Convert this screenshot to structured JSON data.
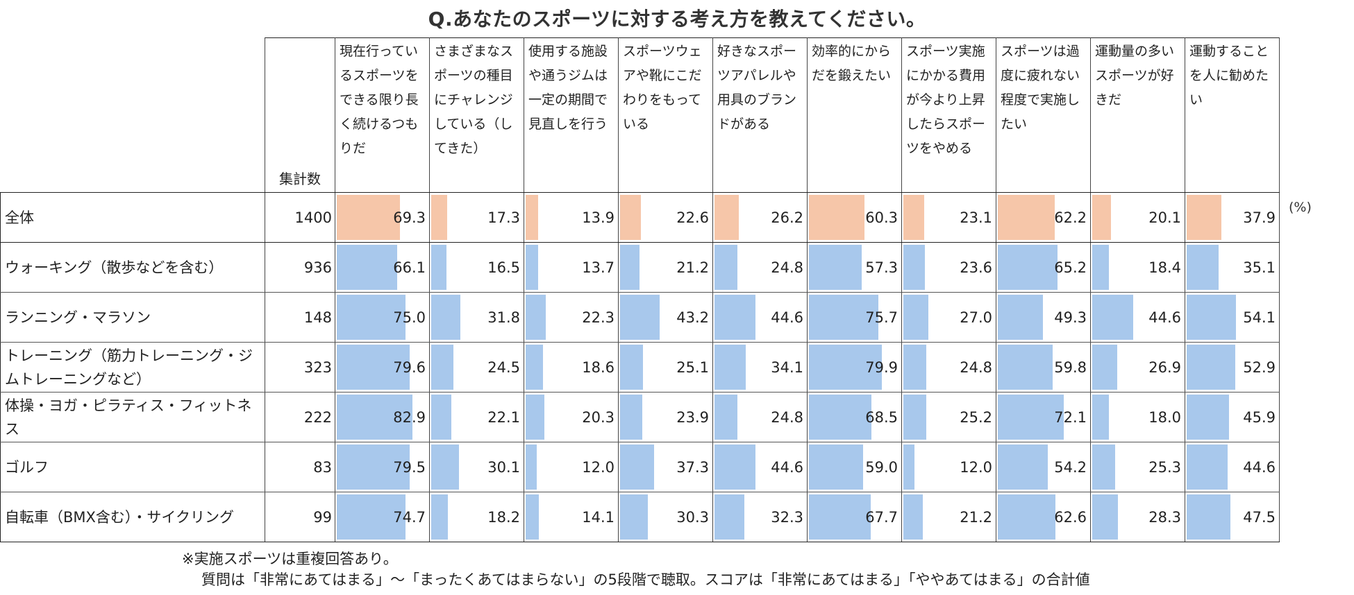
{
  "title": "Q.あなたのスポーツに対する考え方を教えてください。",
  "unit_label": "(%)",
  "count_header": "集計数",
  "notes": [
    "※実施スポーツは重複回答あり。",
    "質問は「非常にあてはまる」〜「まったくあてはまらない」の5段階で聴取。スコアは「非常にあてはまる」「ややあてはまる」の合計値"
  ],
  "colors": {
    "total_bar": "#f6c6a9",
    "group_bar": "#a8c8ec"
  },
  "chart_data": {
    "type": "table",
    "value_max": 100,
    "columns": [
      "現在行っているスポーツをできる限り長く続けるつもりだ",
      "さまざまなスポーツの種目にチャレンジしている（してきた）",
      "使用する施設や通うジムは一定の期間で見直しを行う",
      "スポーツウェアや靴にこだわりをもっている",
      "好きなスポーツアパレルや用具のブランドがある",
      "効率的にからだを鍛えたい",
      "スポーツ実施にかかる費用が今より上昇したらスポーツをやめる",
      "スポーツは過度に疲れない程度で実施したい",
      "運動量の多いスポーツが好きだ",
      "運動することを人に勧めたい"
    ],
    "rows": [
      {
        "label": "全体",
        "count": "1400",
        "values": [
          "69.3",
          "17.3",
          "13.9",
          "22.6",
          "26.2",
          "60.3",
          "23.1",
          "62.2",
          "20.1",
          "37.9"
        ]
      },
      {
        "label": "ウォーキング（散歩などを含む）",
        "count": "936",
        "values": [
          "66.1",
          "16.5",
          "13.7",
          "21.2",
          "24.8",
          "57.3",
          "23.6",
          "65.2",
          "18.4",
          "35.1"
        ]
      },
      {
        "label": "ランニング・マラソン",
        "count": "148",
        "values": [
          "75.0",
          "31.8",
          "22.3",
          "43.2",
          "44.6",
          "75.7",
          "27.0",
          "49.3",
          "44.6",
          "54.1"
        ]
      },
      {
        "label": "トレーニング（筋力トレーニング・ジムトレーニングなど）",
        "count": "323",
        "values": [
          "79.6",
          "24.5",
          "18.6",
          "25.1",
          "34.1",
          "79.9",
          "24.8",
          "59.8",
          "26.9",
          "52.9"
        ]
      },
      {
        "label": "体操・ヨガ・ピラティス・フィットネス",
        "count": "222",
        "values": [
          "82.9",
          "22.1",
          "20.3",
          "23.9",
          "24.8",
          "68.5",
          "25.2",
          "72.1",
          "18.0",
          "45.9"
        ]
      },
      {
        "label": "ゴルフ",
        "count": "83",
        "values": [
          "79.5",
          "30.1",
          "12.0",
          "37.3",
          "44.6",
          "59.0",
          "12.0",
          "54.2",
          "25.3",
          "44.6"
        ]
      },
      {
        "label": "自転車（BMX含む）・サイクリング",
        "count": "99",
        "values": [
          "74.7",
          "18.2",
          "14.1",
          "30.3",
          "32.3",
          "67.7",
          "21.2",
          "62.6",
          "28.3",
          "47.5"
        ]
      }
    ]
  }
}
